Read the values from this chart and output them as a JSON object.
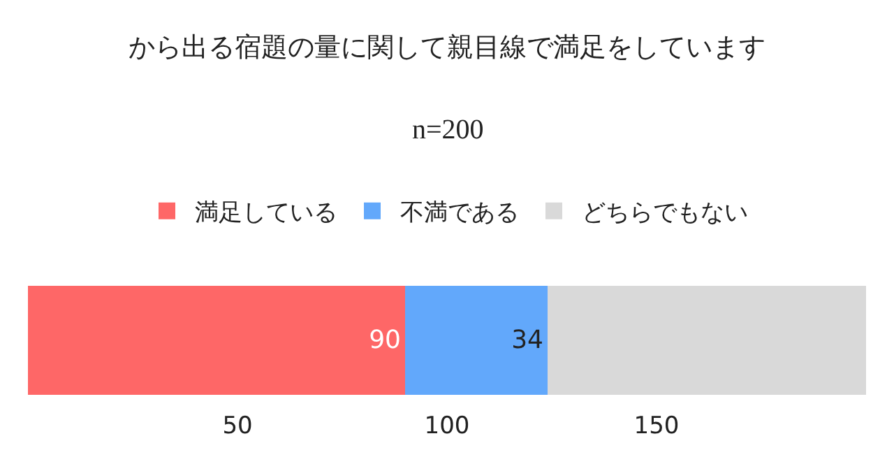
{
  "chart_data": {
    "type": "bar",
    "orientation": "horizontal",
    "stacked": true,
    "title": "から出る宿題の量に関して親目線で満足をしています",
    "subtitle": "n=200",
    "categories": [
      null
    ],
    "series": [
      {
        "name": "満足している",
        "color": "#fe6767",
        "values": [
          90
        ],
        "value_labels": [
          "90"
        ]
      },
      {
        "name": "不満である",
        "color": "#62a8fb",
        "values": [
          34
        ],
        "value_labels": [
          "34"
        ]
      },
      {
        "name": "どちらでもない",
        "color": "#d9d9d9",
        "values": [
          76
        ],
        "value_labels": [
          null
        ]
      }
    ],
    "xlim": [
      0,
      200
    ],
    "xticks": [
      50,
      100,
      150
    ],
    "grid": false,
    "legend": "top"
  }
}
